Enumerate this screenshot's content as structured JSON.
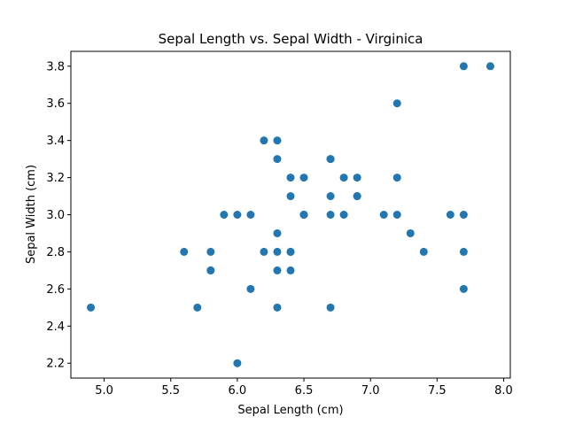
{
  "chart_data": {
    "type": "scatter",
    "title": "Sepal Length vs. Sepal Width - Virginica",
    "xlabel": "Sepal Length (cm)",
    "ylabel": "Sepal Width (cm)",
    "xlim": [
      4.75,
      8.05
    ],
    "ylim": [
      2.12,
      3.88
    ],
    "xticks": [
      "5.0",
      "5.5",
      "6.0",
      "6.5",
      "7.0",
      "7.5",
      "8.0"
    ],
    "yticks": [
      "2.2",
      "2.4",
      "2.6",
      "2.8",
      "3.0",
      "3.2",
      "3.4",
      "3.6",
      "3.8"
    ],
    "grid": false,
    "marker_color": "#1f77b4",
    "series": [
      {
        "x": [
          6.3,
          5.8,
          7.1,
          6.3,
          6.5,
          7.6,
          4.9,
          7.3,
          6.7,
          7.2,
          6.5,
          6.4,
          6.8,
          5.7,
          5.8,
          6.4,
          6.5,
          7.7,
          7.7,
          6.0,
          6.9,
          5.6,
          7.7,
          6.3,
          6.7,
          7.2,
          6.2,
          6.1,
          6.4,
          7.2,
          7.4,
          7.9,
          6.4,
          6.3,
          6.1,
          7.7,
          6.3,
          6.4,
          6.0,
          6.9,
          6.7,
          6.9,
          5.8,
          6.8,
          6.7,
          6.7,
          6.3,
          6.5,
          6.2,
          5.9
        ],
        "y": [
          3.3,
          2.7,
          3.0,
          2.9,
          3.0,
          3.0,
          2.5,
          2.9,
          2.5,
          3.6,
          3.2,
          2.7,
          3.0,
          2.5,
          2.8,
          3.2,
          3.0,
          3.8,
          2.6,
          2.2,
          3.2,
          2.8,
          2.8,
          2.7,
          3.3,
          3.2,
          2.8,
          3.0,
          2.8,
          3.0,
          2.8,
          3.8,
          2.8,
          2.8,
          2.6,
          3.0,
          3.4,
          3.1,
          3.0,
          3.1,
          3.1,
          3.1,
          2.7,
          3.2,
          3.3,
          3.0,
          2.5,
          3.0,
          3.4,
          3.0
        ]
      }
    ]
  }
}
